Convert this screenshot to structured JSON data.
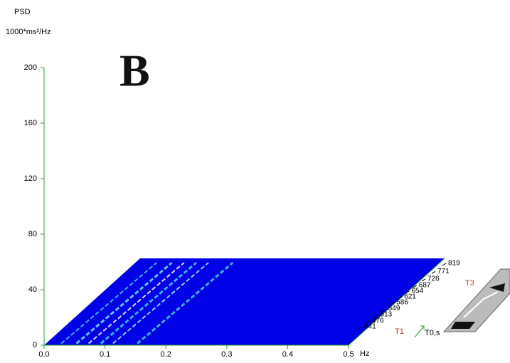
{
  "chart_data": {
    "type": "surface3d",
    "annotation": "B",
    "y_label": "PSD",
    "y_unit": "1000*ms²/Hz",
    "x_unit": "Hz",
    "z_label": "T0,s",
    "marker_start": "T1",
    "marker_end": "T3",
    "ylim": [
      0,
      200
    ],
    "yticks": [
      0,
      40,
      80,
      120,
      160,
      200
    ],
    "xlim": [
      0,
      0.5
    ],
    "xticks": [
      {
        "value": 0,
        "label": "0.0"
      },
      0.1,
      0.2,
      0.3,
      0.4,
      0.5
    ],
    "zlim": [
      441,
      819
    ],
    "zticks": [
      441,
      476,
      513,
      549,
      586,
      621,
      654,
      687,
      726,
      771,
      819
    ],
    "axis_color": "#2e9e2e",
    "surface_color": "#0000e6"
  }
}
